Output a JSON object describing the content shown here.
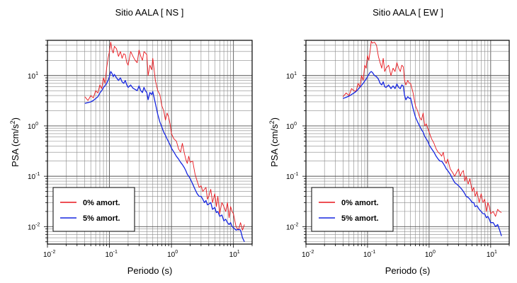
{
  "chart_data": [
    {
      "type": "line",
      "title": "Sitio AALA [ NS ]",
      "xlabel": "Periodo (s)",
      "ylabel_main": "PSA (cm/s",
      "ylabel_sup": "2",
      "ylabel_tail": ")",
      "xscale": "log",
      "yscale": "log",
      "xlim": [
        0.01,
        20
      ],
      "ylim": [
        0.0045,
        50
      ],
      "grid": true,
      "legend_position": "bottom-left",
      "x_ticks": [
        {
          "base": "10",
          "exp": "-2",
          "value": 0.01
        },
        {
          "base": "10",
          "exp": "-1",
          "value": 0.1
        },
        {
          "base": "10",
          "exp": "0",
          "value": 1
        },
        {
          "base": "10",
          "exp": "1",
          "value": 10
        }
      ],
      "y_ticks": [
        {
          "base": "10",
          "exp": "-2",
          "value": 0.01
        },
        {
          "base": "10",
          "exp": "-1",
          "value": 0.1
        },
        {
          "base": "10",
          "exp": "0",
          "value": 1
        },
        {
          "base": "10",
          "exp": "1",
          "value": 10
        }
      ],
      "series": [
        {
          "name": "0% amort.",
          "color": "#e8151b",
          "x": [
            0.04,
            0.045,
            0.05,
            0.055,
            0.06,
            0.065,
            0.07,
            0.075,
            0.08,
            0.085,
            0.09,
            0.095,
            0.1,
            0.105,
            0.11,
            0.115,
            0.12,
            0.13,
            0.14,
            0.15,
            0.16,
            0.17,
            0.18,
            0.19,
            0.2,
            0.22,
            0.24,
            0.26,
            0.28,
            0.3,
            0.32,
            0.34,
            0.36,
            0.38,
            0.4,
            0.42,
            0.45,
            0.48,
            0.5,
            0.55,
            0.6,
            0.65,
            0.7,
            0.75,
            0.8,
            0.85,
            0.9,
            0.95,
            1.0,
            1.1,
            1.2,
            1.3,
            1.4,
            1.5,
            1.6,
            1.7,
            1.8,
            1.9,
            2.0,
            2.2,
            2.4,
            2.6,
            2.8,
            3.0,
            3.2,
            3.4,
            3.6,
            3.8,
            4.0,
            4.3,
            4.6,
            5.0,
            5.3,
            5.6,
            6.0,
            6.5,
            7.0,
            7.5,
            8.0,
            8.5,
            9.0,
            9.5,
            10,
            11,
            12,
            13,
            14,
            15
          ],
          "y": [
            3.8,
            3.2,
            4.0,
            3.6,
            5.0,
            4.5,
            6.5,
            5.5,
            9.0,
            7.0,
            14.0,
            22.0,
            30.0,
            46.0,
            32.0,
            28.0,
            38.0,
            34.0,
            24.0,
            30.0,
            22.0,
            27.0,
            26.0,
            18.0,
            16.0,
            30.0,
            24.0,
            20.0,
            18.0,
            32.0,
            24.0,
            20.0,
            30.0,
            28.0,
            26.0,
            10.0,
            16.0,
            13.0,
            22.0,
            8.0,
            5.0,
            4.2,
            2.5,
            2.0,
            1.3,
            1.8,
            1.5,
            1.1,
            0.7,
            0.55,
            0.5,
            0.35,
            0.3,
            0.45,
            0.3,
            0.22,
            0.18,
            0.25,
            0.19,
            0.2,
            0.11,
            0.08,
            0.06,
            0.065,
            0.05,
            0.055,
            0.06,
            0.035,
            0.04,
            0.055,
            0.03,
            0.045,
            0.025,
            0.04,
            0.018,
            0.03,
            0.025,
            0.02,
            0.03,
            0.015,
            0.025,
            0.02,
            0.018,
            0.01,
            0.0085,
            0.012,
            0.0085,
            0.011
          ]
        },
        {
          "name": "5% amort.",
          "color": "#1626e0",
          "x": [
            0.04,
            0.045,
            0.05,
            0.055,
            0.06,
            0.065,
            0.07,
            0.075,
            0.08,
            0.085,
            0.09,
            0.095,
            0.1,
            0.105,
            0.11,
            0.115,
            0.12,
            0.13,
            0.14,
            0.15,
            0.16,
            0.17,
            0.18,
            0.19,
            0.2,
            0.22,
            0.24,
            0.26,
            0.28,
            0.3,
            0.32,
            0.34,
            0.36,
            0.38,
            0.4,
            0.42,
            0.45,
            0.48,
            0.5,
            0.55,
            0.6,
            0.65,
            0.7,
            0.75,
            0.8,
            0.85,
            0.9,
            0.95,
            1.0,
            1.1,
            1.2,
            1.3,
            1.4,
            1.5,
            1.6,
            1.7,
            1.8,
            1.9,
            2.0,
            2.2,
            2.4,
            2.6,
            2.8,
            3.0,
            3.2,
            3.4,
            3.6,
            3.8,
            4.0,
            4.3,
            4.6,
            5.0,
            5.3,
            5.6,
            6.0,
            6.5,
            7.0,
            7.5,
            8.0,
            8.5,
            9.0,
            9.5,
            10,
            11,
            12,
            13,
            14,
            15
          ],
          "y": [
            2.8,
            2.9,
            3.0,
            3.2,
            3.5,
            3.8,
            4.5,
            5.0,
            5.8,
            6.3,
            7.0,
            8.0,
            9.5,
            12.0,
            11.0,
            9.5,
            10.5,
            9.0,
            8.0,
            9.0,
            7.5,
            7.0,
            8.0,
            6.5,
            5.8,
            6.5,
            5.6,
            5.3,
            5.0,
            6.2,
            5.0,
            4.6,
            5.8,
            5.0,
            4.6,
            3.3,
            4.6,
            4.2,
            4.8,
            2.8,
            1.7,
            1.2,
            0.95,
            0.75,
            0.65,
            0.55,
            0.48,
            0.42,
            0.36,
            0.3,
            0.25,
            0.22,
            0.19,
            0.17,
            0.15,
            0.13,
            0.11,
            0.1,
            0.09,
            0.07,
            0.055,
            0.045,
            0.04,
            0.04,
            0.035,
            0.03,
            0.033,
            0.027,
            0.028,
            0.03,
            0.022,
            0.024,
            0.019,
            0.02,
            0.016,
            0.017,
            0.013,
            0.014,
            0.012,
            0.011,
            0.012,
            0.01,
            0.0095,
            0.0085,
            0.0088,
            0.0085,
            0.006,
            0.005
          ]
        }
      ]
    },
    {
      "type": "line",
      "title": "Sitio AALA [ EW ]",
      "xlabel": "Periodo (s)",
      "ylabel_main": "PSA (cm/s",
      "ylabel_sup": "2",
      "ylabel_tail": ")",
      "xscale": "log",
      "yscale": "log",
      "xlim": [
        0.01,
        20
      ],
      "ylim": [
        0.0045,
        50
      ],
      "grid": true,
      "legend_position": "bottom-left",
      "x_ticks": [
        {
          "base": "10",
          "exp": "-2",
          "value": 0.01
        },
        {
          "base": "10",
          "exp": "-1",
          "value": 0.1
        },
        {
          "base": "10",
          "exp": "0",
          "value": 1
        },
        {
          "base": "10",
          "exp": "1",
          "value": 10
        }
      ],
      "y_ticks": [
        {
          "base": "10",
          "exp": "-2",
          "value": 0.01
        },
        {
          "base": "10",
          "exp": "-1",
          "value": 0.1
        },
        {
          "base": "10",
          "exp": "0",
          "value": 1
        },
        {
          "base": "10",
          "exp": "1",
          "value": 10
        }
      ],
      "series": [
        {
          "name": "0% amort.",
          "color": "#e8151b",
          "x": [
            0.04,
            0.045,
            0.05,
            0.055,
            0.06,
            0.065,
            0.07,
            0.075,
            0.08,
            0.085,
            0.09,
            0.095,
            0.1,
            0.105,
            0.11,
            0.115,
            0.12,
            0.13,
            0.14,
            0.15,
            0.16,
            0.17,
            0.18,
            0.19,
            0.2,
            0.22,
            0.24,
            0.26,
            0.28,
            0.3,
            0.32,
            0.34,
            0.36,
            0.38,
            0.4,
            0.42,
            0.45,
            0.48,
            0.5,
            0.55,
            0.6,
            0.65,
            0.7,
            0.75,
            0.8,
            0.85,
            0.9,
            0.95,
            1.0,
            1.1,
            1.2,
            1.3,
            1.4,
            1.5,
            1.6,
            1.7,
            1.8,
            1.9,
            2.0,
            2.2,
            2.4,
            2.6,
            2.8,
            3.0,
            3.2,
            3.4,
            3.6,
            3.8,
            4.0,
            4.3,
            4.6,
            5.0,
            5.3,
            5.6,
            6.0,
            6.5,
            7.0,
            7.5,
            8.0,
            8.5,
            9.0,
            9.5,
            10,
            11,
            12,
            13,
            14,
            15
          ],
          "y": [
            3.8,
            4.5,
            4.0,
            5.5,
            5.0,
            4.8,
            7.0,
            6.0,
            10.0,
            8.0,
            16.0,
            14.0,
            25.0,
            20.0,
            30.0,
            48.0,
            44.0,
            46.0,
            40.0,
            24.0,
            18.0,
            14.0,
            22.0,
            12.0,
            14.0,
            16.0,
            10.0,
            14.0,
            12.0,
            18.0,
            14.0,
            12.0,
            16.0,
            15.0,
            8.0,
            6.5,
            8.0,
            7.0,
            7.0,
            4.5,
            2.5,
            2.0,
            1.5,
            1.3,
            1.8,
            1.0,
            1.1,
            0.9,
            0.75,
            0.55,
            0.45,
            0.35,
            0.3,
            0.28,
            0.25,
            0.3,
            0.2,
            0.18,
            0.22,
            0.14,
            0.12,
            0.1,
            0.12,
            0.14,
            0.1,
            0.12,
            0.13,
            0.08,
            0.1,
            0.07,
            0.09,
            0.05,
            0.06,
            0.04,
            0.05,
            0.03,
            0.045,
            0.03,
            0.035,
            0.02,
            0.03,
            0.025,
            0.018,
            0.02,
            0.016,
            0.022,
            0.02,
            0.019
          ]
        },
        {
          "name": "5% amort.",
          "color": "#1626e0",
          "x": [
            0.04,
            0.045,
            0.05,
            0.055,
            0.06,
            0.065,
            0.07,
            0.075,
            0.08,
            0.085,
            0.09,
            0.095,
            0.1,
            0.105,
            0.11,
            0.115,
            0.12,
            0.13,
            0.14,
            0.15,
            0.16,
            0.17,
            0.18,
            0.19,
            0.2,
            0.22,
            0.24,
            0.26,
            0.28,
            0.3,
            0.32,
            0.34,
            0.36,
            0.38,
            0.4,
            0.42,
            0.45,
            0.48,
            0.5,
            0.55,
            0.6,
            0.65,
            0.7,
            0.75,
            0.8,
            0.85,
            0.9,
            0.95,
            1.0,
            1.1,
            1.2,
            1.3,
            1.4,
            1.5,
            1.6,
            1.7,
            1.8,
            1.9,
            2.0,
            2.2,
            2.4,
            2.6,
            2.8,
            3.0,
            3.2,
            3.4,
            3.6,
            3.8,
            4.0,
            4.3,
            4.6,
            5.0,
            5.3,
            5.6,
            6.0,
            6.5,
            7.0,
            7.5,
            8.0,
            8.5,
            9.0,
            9.5,
            10,
            11,
            12,
            13,
            14,
            15
          ],
          "y": [
            3.5,
            3.7,
            3.9,
            4.2,
            4.5,
            4.8,
            5.3,
            5.8,
            6.4,
            7.0,
            7.8,
            8.5,
            9.5,
            10.5,
            11.5,
            12.0,
            11.5,
            10.0,
            9.5,
            8.5,
            7.0,
            6.5,
            7.5,
            6.0,
            5.8,
            6.5,
            5.5,
            6.2,
            5.5,
            6.8,
            5.8,
            5.5,
            6.5,
            6.2,
            4.0,
            3.3,
            3.8,
            3.5,
            3.6,
            2.2,
            1.5,
            1.2,
            1.0,
            0.85,
            0.75,
            0.62,
            0.55,
            0.5,
            0.42,
            0.35,
            0.3,
            0.25,
            0.22,
            0.2,
            0.2,
            0.18,
            0.16,
            0.14,
            0.13,
            0.11,
            0.09,
            0.075,
            0.07,
            0.065,
            0.06,
            0.055,
            0.05,
            0.045,
            0.04,
            0.038,
            0.035,
            0.03,
            0.03,
            0.025,
            0.026,
            0.022,
            0.02,
            0.018,
            0.018,
            0.015,
            0.016,
            0.014,
            0.012,
            0.012,
            0.01,
            0.011,
            0.0085,
            0.0065
          ]
        }
      ]
    }
  ]
}
